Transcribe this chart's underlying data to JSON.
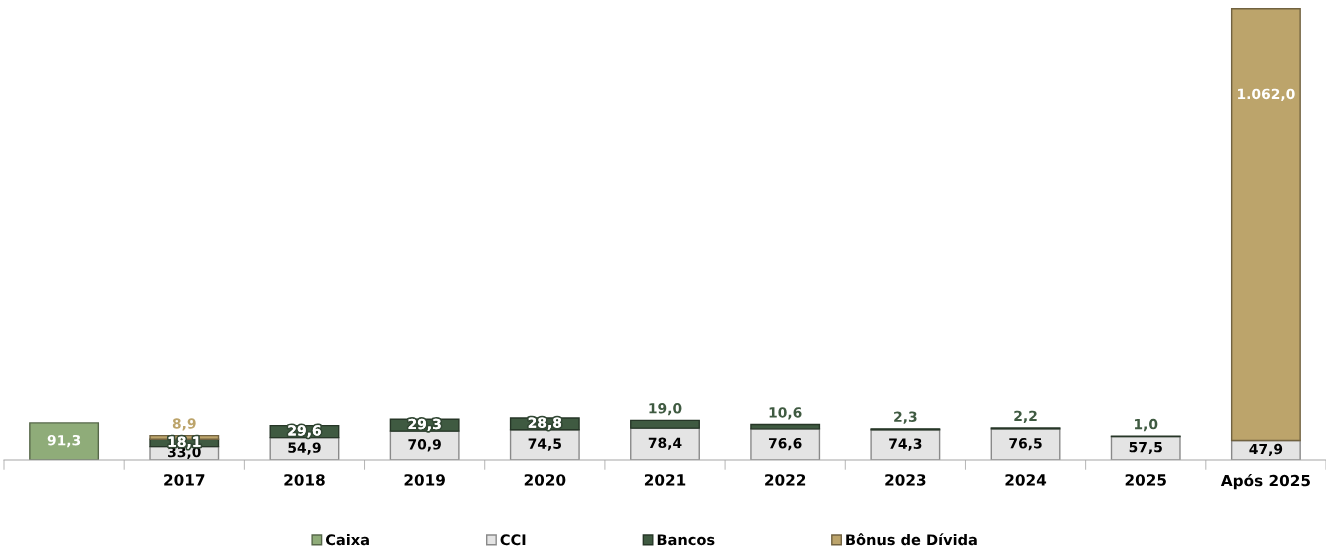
{
  "chart_data": {
    "type": "bar",
    "stacked": true,
    "categories": [
      null,
      "2017",
      "2018",
      "2019",
      "2020",
      "2021",
      "2022",
      "2023",
      "2024",
      "2025",
      "Após 2025"
    ],
    "series": [
      {
        "name": "Caixa",
        "color": "#8fac79",
        "values": [
          91.3,
          null,
          null,
          null,
          null,
          null,
          null,
          null,
          null,
          null,
          null
        ],
        "value_labels": [
          "91,3",
          null,
          null,
          null,
          null,
          null,
          null,
          null,
          null,
          null,
          null
        ]
      },
      {
        "name": "CCI",
        "color": "#e4e4e4",
        "values": [
          null,
          33.0,
          54.9,
          70.9,
          74.5,
          78.4,
          76.6,
          74.3,
          76.5,
          57.5,
          47.9
        ],
        "value_labels": [
          null,
          "33,0",
          "54,9",
          "70,9",
          "74,5",
          "78,4",
          "76,6",
          "74,3",
          "76,5",
          "57,5",
          "47,9"
        ]
      },
      {
        "name": "Bancos",
        "color": "#3f5a41",
        "values": [
          null,
          18.1,
          29.6,
          29.3,
          28.8,
          19.0,
          10.6,
          2.3,
          2.2,
          1.0,
          null
        ],
        "value_labels": [
          null,
          "18,1",
          "29,6",
          "29,3",
          "28,8",
          "19,0",
          "10,6",
          "2,3",
          "2,2",
          "1,0",
          null
        ]
      },
      {
        "name": "Bônus de Dívida",
        "color": "#bca46b",
        "values": [
          null,
          8.9,
          null,
          null,
          null,
          null,
          null,
          null,
          null,
          null,
          1062.0
        ],
        "value_labels": [
          null,
          "8,9",
          null,
          null,
          null,
          null,
          null,
          null,
          null,
          null,
          "1.062,0"
        ]
      }
    ],
    "tick_labels": "x",
    "legend": "bottom"
  }
}
